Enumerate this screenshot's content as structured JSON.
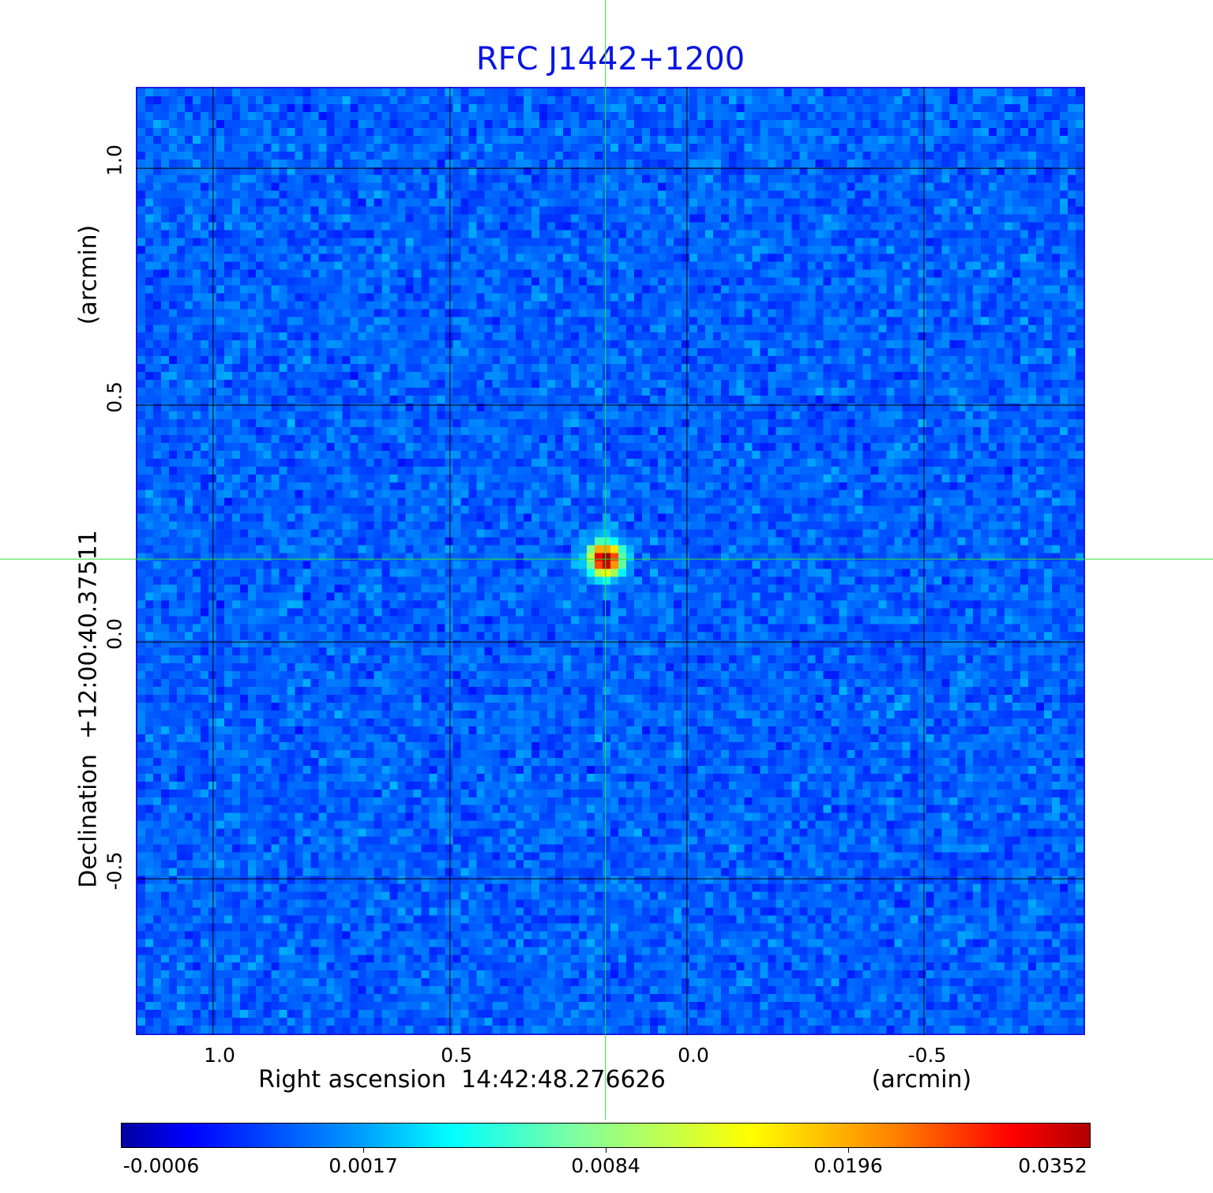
{
  "chart_data": {
    "type": "heatmap",
    "title": "RFC J1442+1200",
    "xlabel": "Right ascension  14:42:48.276626",
    "xunit": "(arcmin)",
    "ylabel": "Declination  +12:00:40.37511",
    "yunit": "(arcmin)",
    "xlim": [
      1.163,
      -0.84
    ],
    "ylim": [
      -0.83,
      1.172
    ],
    "xticks": [
      1.0,
      0.5,
      0.0,
      -0.5
    ],
    "xtick_labels": [
      "1.0",
      "0.5",
      "0.0",
      "-0.5"
    ],
    "yticks": [
      1.0,
      0.5,
      0.0,
      -0.5
    ],
    "ytick_labels": [
      "1.0",
      "0.5",
      "0.0",
      "-0.5"
    ],
    "grid": true,
    "colormap": "jet",
    "colorbar": {
      "placement": "bottom",
      "tick_labels": [
        "-0.0006",
        "0.0017",
        "0.0084",
        "0.0196",
        "0.0352"
      ],
      "min": -0.0006,
      "max": 0.0352
    },
    "source": {
      "x": 0.172,
      "y": 0.175,
      "peak": 0.0352
    },
    "crosshair": {
      "x": 0.172,
      "y": 0.175,
      "color": "#33dd33"
    },
    "background_level": 0.0005
  }
}
